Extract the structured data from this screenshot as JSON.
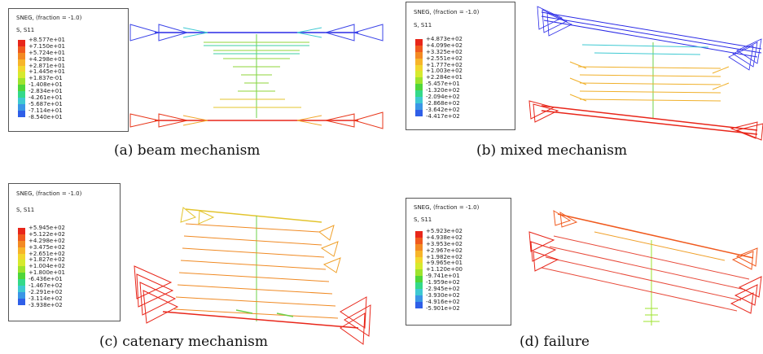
{
  "panels": [
    {
      "caption": "(a) beam mechanism",
      "legend": {
        "title": "SNEG, (fraction = -1.0)",
        "var": "S, S11",
        "values": [
          "+8.577e+01",
          "+7.150e+01",
          "+5.724e+01",
          "+4.298e+01",
          "+2.871e+01",
          "+1.445e+01",
          "+1.837e-01",
          "-1.408e+01",
          "-2.834e+01",
          "-4.261e+01",
          "-5.687e+01",
          "-7.114e+01",
          "-8.540e+01"
        ]
      }
    },
    {
      "caption": "(b) mixed mechanism",
      "legend": {
        "title": "SNEG, (fraction = -1.0)",
        "var": "S, S11",
        "values": [
          "+4.873e+02",
          "+4.099e+02",
          "+3.325e+02",
          "+2.551e+02",
          "+1.777e+02",
          "+1.003e+02",
          "+2.284e+01",
          "-5.457e+01",
          "-1.320e+02",
          "-2.094e+02",
          "-2.868e+02",
          "-3.642e+02",
          "-4.417e+02"
        ]
      }
    },
    {
      "caption": "(c) catenary mechanism",
      "legend": {
        "title": "SNEG, (fraction = -1.0)",
        "var": "S, S11",
        "values": [
          "+5.945e+02",
          "+5.122e+02",
          "+4.298e+02",
          "+3.475e+02",
          "+2.651e+02",
          "+1.827e+02",
          "+1.004e+02",
          "+1.800e+01",
          "-6.436e+01",
          "-1.467e+02",
          "-2.291e+02",
          "-3.114e+02",
          "-3.938e+02"
        ]
      }
    },
    {
      "caption": "(d) failure",
      "legend": {
        "title": "SNEG, (fraction = -1.0)",
        "var": "S, S11",
        "values": [
          "+5.923e+02",
          "+4.938e+02",
          "+3.953e+02",
          "+2.967e+02",
          "+1.982e+02",
          "+9.965e+01",
          "+1.120e+00",
          "-9.741e+01",
          "-1.959e+02",
          "-2.945e+02",
          "-3.930e+02",
          "-4.916e+02",
          "-5.901e+02"
        ]
      }
    }
  ],
  "colors": {
    "scale": [
      "#e8261a",
      "#f05a1e",
      "#f38a23",
      "#f7b52a",
      "#f2d72e",
      "#d6ea2e",
      "#9ee32d",
      "#4fd63a",
      "#34d98a",
      "#3ec9d2",
      "#3a96e6",
      "#2f5fe8",
      "#2222e0"
    ]
  }
}
